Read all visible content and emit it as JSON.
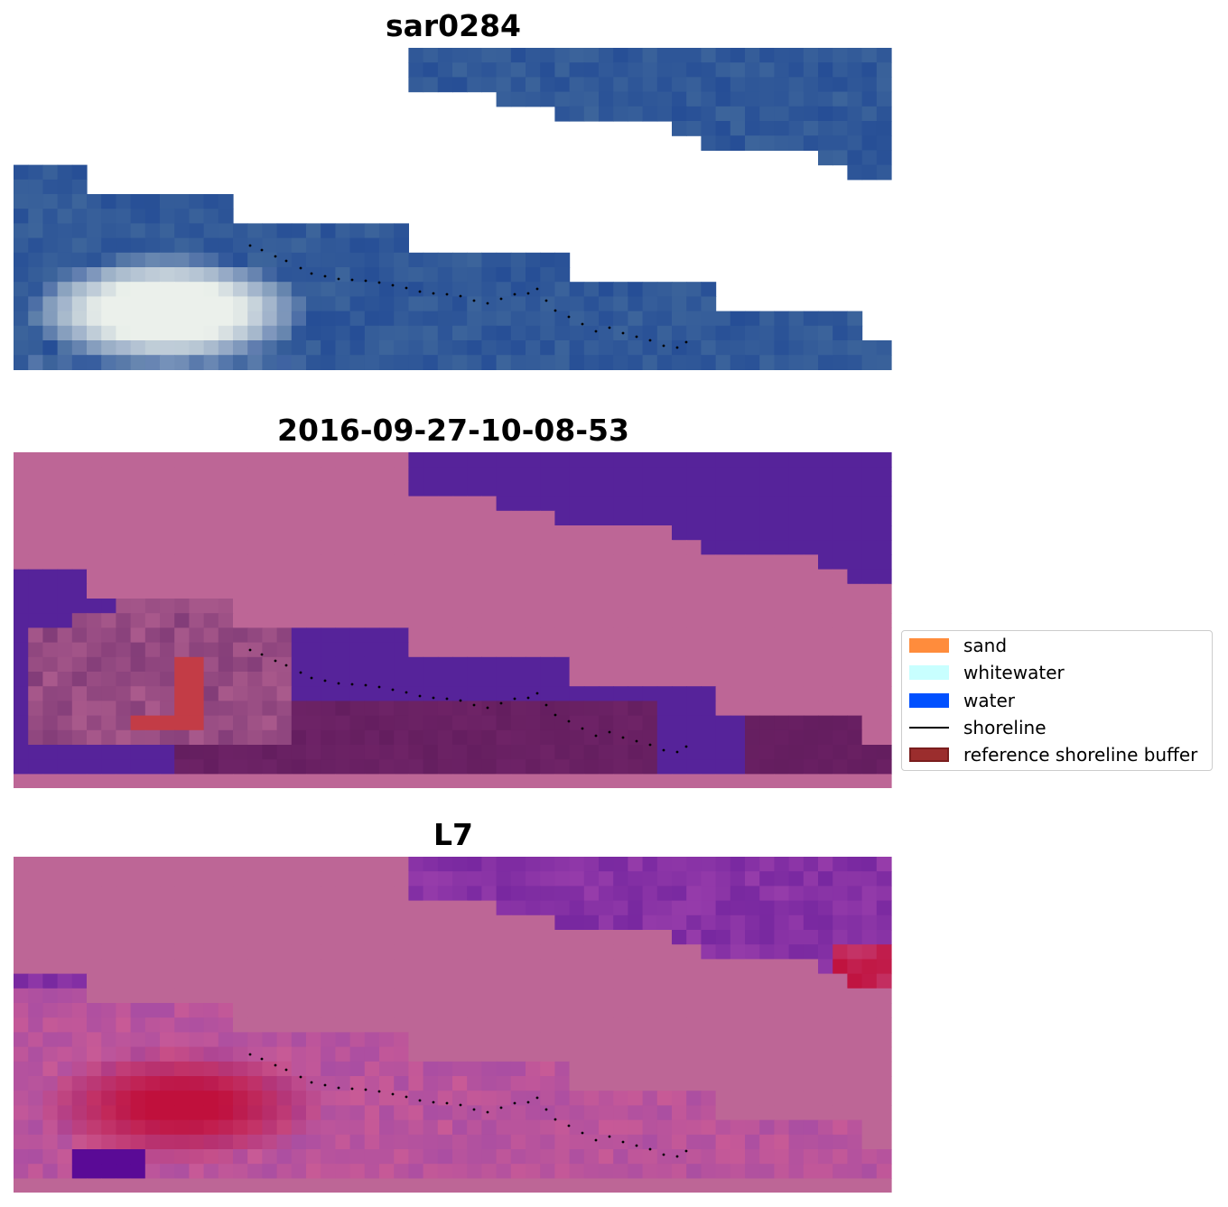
{
  "panels": [
    {
      "title": "sar0284"
    },
    {
      "title": "2016-09-27-10-08-53"
    },
    {
      "title": "L7"
    }
  ],
  "legend": {
    "items": [
      {
        "label": "sand",
        "type": "patch",
        "color": "#ff8c3c"
      },
      {
        "label": "whitewater",
        "type": "patch",
        "color": "#c8ffff"
      },
      {
        "label": "water",
        "type": "patch",
        "color": "#0050ff"
      },
      {
        "label": "shoreline",
        "type": "line",
        "color": "#000000"
      },
      {
        "label": "reference shoreline buffer",
        "type": "patch",
        "color": "#9b2d2d",
        "edge": "#7a1e1e"
      }
    ]
  },
  "colors": {
    "cloud_mask": "#bd6696",
    "water_class": "#56239a",
    "satellite_blue": "#2a56a0",
    "index_red": "#c0103c"
  }
}
